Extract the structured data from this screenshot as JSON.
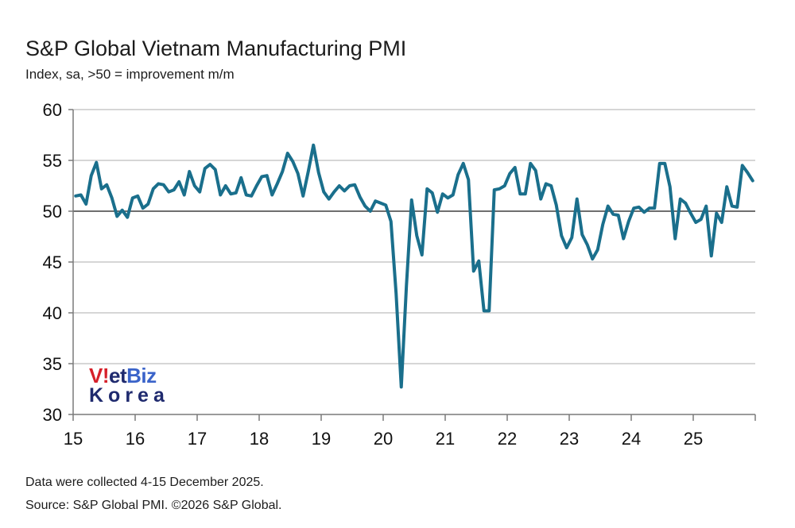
{
  "header": {
    "title": "S&P Global Vietnam Manufacturing PMI",
    "subtitle": "Index, sa, >50 = improvement m/m"
  },
  "footer": {
    "line1": "Data were collected 4-15 December 2025.",
    "line2": "Source: S&P Global PMI. ©2026 S&P Global."
  },
  "watermark": {
    "part1": "V",
    "part2": "!",
    "part3": "et",
    "part4": "Biz",
    "line2": "Korea",
    "colors": {
      "red": "#d6202a",
      "navy": "#1f2a6e",
      "blue": "#3a63c9"
    }
  },
  "colors": {
    "line": "#1a6f8c",
    "grid": "#c8c8c8",
    "ref_line": "#5a5a5a",
    "axis": "#7a7a7a"
  },
  "chart_data": {
    "type": "line",
    "title": "S&P Global Vietnam Manufacturing PMI",
    "subtitle": "Index, sa, >50 = improvement m/m",
    "xlabel": "",
    "ylabel": "",
    "ylim": [
      30,
      60
    ],
    "yticks": [
      30,
      35,
      40,
      45,
      50,
      55,
      60
    ],
    "xlim": [
      15,
      26
    ],
    "xtick_labels": [
      "15",
      "16",
      "17",
      "18",
      "19",
      "20",
      "21",
      "22",
      "23",
      "24",
      "25"
    ],
    "reference_line": 50,
    "grid": true,
    "frequency": "monthly, Jan 2015 - Dec 2025",
    "series": [
      {
        "name": "Vietnam Manufacturing PMI",
        "values": [
          51.5,
          51.6,
          50.7,
          53.5,
          54.8,
          52.2,
          52.6,
          51.3,
          49.5,
          50.1,
          49.4,
          51.3,
          51.5,
          50.3,
          50.7,
          52.2,
          52.7,
          52.6,
          51.9,
          52.1,
          52.9,
          51.6,
          53.9,
          52.5,
          51.9,
          54.2,
          54.6,
          54.1,
          51.6,
          52.5,
          51.7,
          51.8,
          53.3,
          51.6,
          51.5,
          52.5,
          53.4,
          53.5,
          51.6,
          52.7,
          53.9,
          55.7,
          54.9,
          53.7,
          51.5,
          53.9,
          56.5,
          53.8,
          51.9,
          51.2,
          51.9,
          52.5,
          52.0,
          52.5,
          52.6,
          51.4,
          50.5,
          50.0,
          51.0,
          50.8,
          50.6,
          49.0,
          41.9,
          32.7,
          42.7,
          51.1,
          47.6,
          45.7,
          52.2,
          51.8,
          49.9,
          51.7,
          51.3,
          51.6,
          53.6,
          54.7,
          53.1,
          44.1,
          45.1,
          40.2,
          40.2,
          52.1,
          52.2,
          52.5,
          53.7,
          54.3,
          51.7,
          51.7,
          54.7,
          54.0,
          51.2,
          52.7,
          52.5,
          50.6,
          47.6,
          46.4,
          47.4,
          51.2,
          47.7,
          46.7,
          45.3,
          46.2,
          48.7,
          50.5,
          49.7,
          49.6,
          47.3,
          49.0,
          50.3,
          50.4,
          49.9,
          50.3,
          50.3,
          54.7,
          54.7,
          52.4,
          47.3,
          51.2,
          50.8,
          49.8,
          48.9,
          49.2,
          50.5,
          45.6,
          49.8,
          48.9,
          52.4,
          50.5,
          50.4,
          54.5,
          53.8,
          53.0
        ]
      }
    ]
  }
}
